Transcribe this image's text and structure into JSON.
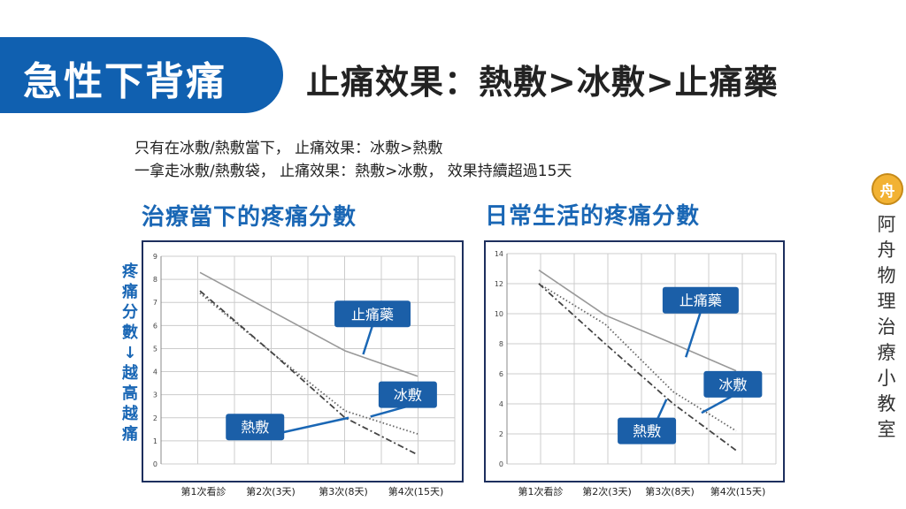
{
  "slide": {
    "section_title": "急性下背痛",
    "headline": "止痛效果：熱敷>冰敷>止痛藥",
    "notes": [
      "只有在冰敷/熱敷當下， 止痛效果：冰敷>熱敷",
      "一拿走冰敷/熱敷袋， 止痛效果：熱敷>冰敷， 效果持續超過15天"
    ],
    "y_axis_label": [
      "疼",
      "痛",
      "分",
      "數",
      "↓",
      "越",
      "高",
      "越",
      "痛"
    ],
    "brand_badge": "舟",
    "brand_text": [
      "阿",
      "舟",
      "物",
      "理",
      "治",
      "療",
      "小",
      "教",
      "室"
    ]
  },
  "chart_data": [
    {
      "type": "line",
      "title": "治療當下的疼痛分數",
      "categories": [
        "第1次看診",
        "第2次(3天)",
        "第3次(8天)",
        "第4次(15天)"
      ],
      "ylim": [
        0,
        9
      ],
      "yticks": [
        0,
        1,
        2,
        3,
        4,
        5,
        6,
        7,
        8,
        9
      ],
      "grid": true,
      "series": [
        {
          "name": "止痛藥",
          "style": "solid",
          "color": "#999999",
          "values": [
            8.3,
            6.6,
            4.9,
            3.8
          ]
        },
        {
          "name": "冰敷",
          "style": "dotted",
          "color": "#666666",
          "values": [
            7.4,
            4.8,
            2.3,
            1.3
          ]
        },
        {
          "name": "熱敷",
          "style": "dashdot",
          "color": "#444444",
          "values": [
            7.5,
            4.8,
            2.0,
            0.4
          ]
        }
      ],
      "callouts": [
        {
          "label": "止痛藥",
          "series": 0,
          "box": [
            0.72,
            6.5
          ],
          "target": [
            2.25,
            4.75
          ]
        },
        {
          "label": "冰敷",
          "series": 1,
          "box": [
            0.84,
            3.0
          ],
          "target": [
            2.35,
            2.05
          ]
        },
        {
          "label": "熱敷",
          "series": 2,
          "box": [
            0.32,
            1.6
          ],
          "target": [
            2.05,
            2.0
          ]
        }
      ]
    },
    {
      "type": "line",
      "title": "日常生活的疼痛分數",
      "categories": [
        "第1次看診",
        "第2次(3天)",
        "第3次(8天)",
        "第4次(15天)"
      ],
      "ylim": [
        0,
        14
      ],
      "yticks": [
        0,
        2,
        4,
        6,
        8,
        10,
        12,
        14
      ],
      "grid": true,
      "series": [
        {
          "name": "止痛藥",
          "style": "solid",
          "color": "#999999",
          "values": [
            12.9,
            9.9,
            8.0,
            6.2
          ]
        },
        {
          "name": "冰敷",
          "style": "dotted",
          "color": "#666666",
          "values": [
            12.0,
            9.3,
            4.8,
            2.2
          ]
        },
        {
          "name": "熱敷",
          "style": "dashdot",
          "color": "#444444",
          "values": [
            12.0,
            8.0,
            4.0,
            0.9
          ]
        }
      ],
      "callouts": [
        {
          "label": "止痛藥",
          "series": 0,
          "box": [
            0.72,
            10.9
          ],
          "target": [
            2.2,
            7.1
          ]
        },
        {
          "label": "冰敷",
          "series": 1,
          "box": [
            0.84,
            5.3
          ],
          "target": [
            2.45,
            3.4
          ]
        },
        {
          "label": "熱敷",
          "series": 2,
          "box": [
            0.52,
            2.2
          ],
          "target": [
            1.9,
            4.3
          ]
        }
      ]
    }
  ]
}
